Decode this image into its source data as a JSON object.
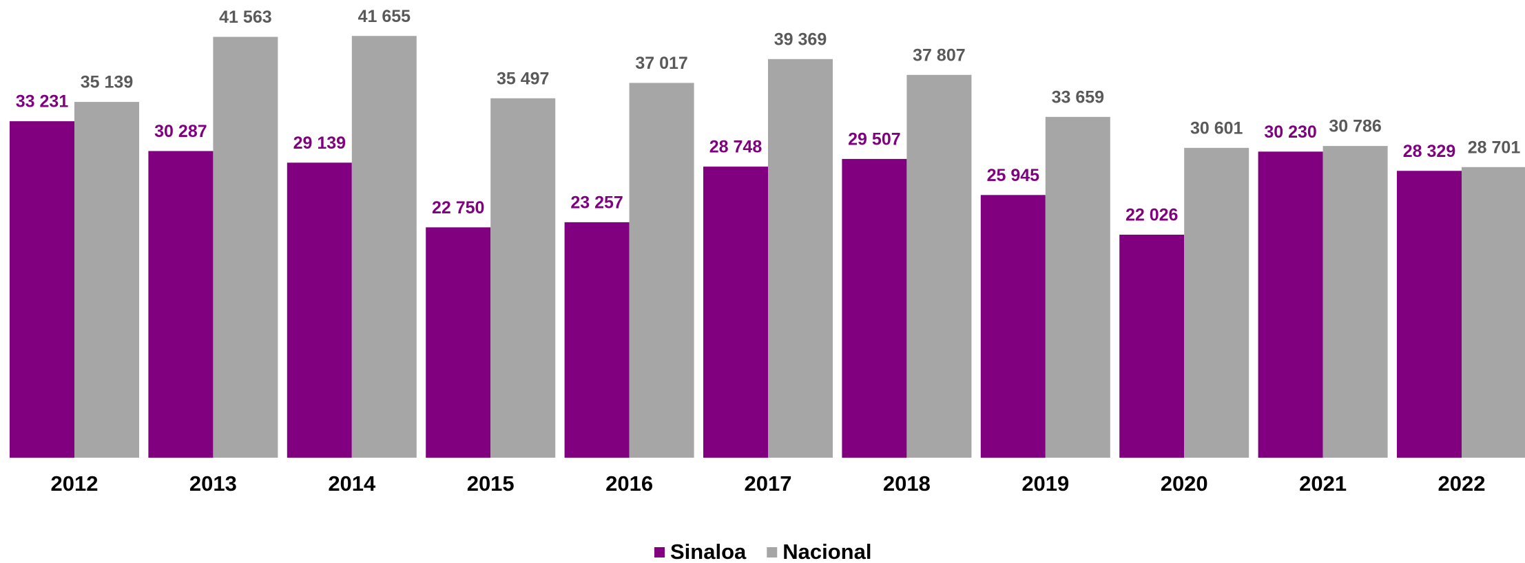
{
  "chart_data": {
    "type": "bar",
    "categories": [
      "2012",
      "2013",
      "2014",
      "2015",
      "2016",
      "2017",
      "2018",
      "2019",
      "2020",
      "2021",
      "2022"
    ],
    "series": [
      {
        "name": "Sinaloa",
        "color": "#800080",
        "label_color": "#800080",
        "values": [
          33231,
          30287,
          29139,
          22750,
          23257,
          28748,
          29507,
          25945,
          22026,
          30230,
          28329
        ],
        "value_labels": [
          "33 231",
          "30 287",
          "29 139",
          "22 750",
          "23 257",
          "28 748",
          "29 507",
          "25 945",
          "22 026",
          "30 230",
          "28 329"
        ]
      },
      {
        "name": "Nacional",
        "color": "#a6a6a6",
        "label_color": "#595959",
        "values": [
          35139,
          41563,
          41655,
          35497,
          37017,
          39369,
          37807,
          33659,
          30601,
          30786,
          28701
        ],
        "value_labels": [
          "35 139",
          "41 563",
          "41 655",
          "35 497",
          "37 017",
          "39 369",
          "37 807",
          "33 659",
          "30 601",
          "30 786",
          "28 701"
        ]
      }
    ],
    "ylim": [
      0,
      45000
    ],
    "legend": "bottom"
  }
}
